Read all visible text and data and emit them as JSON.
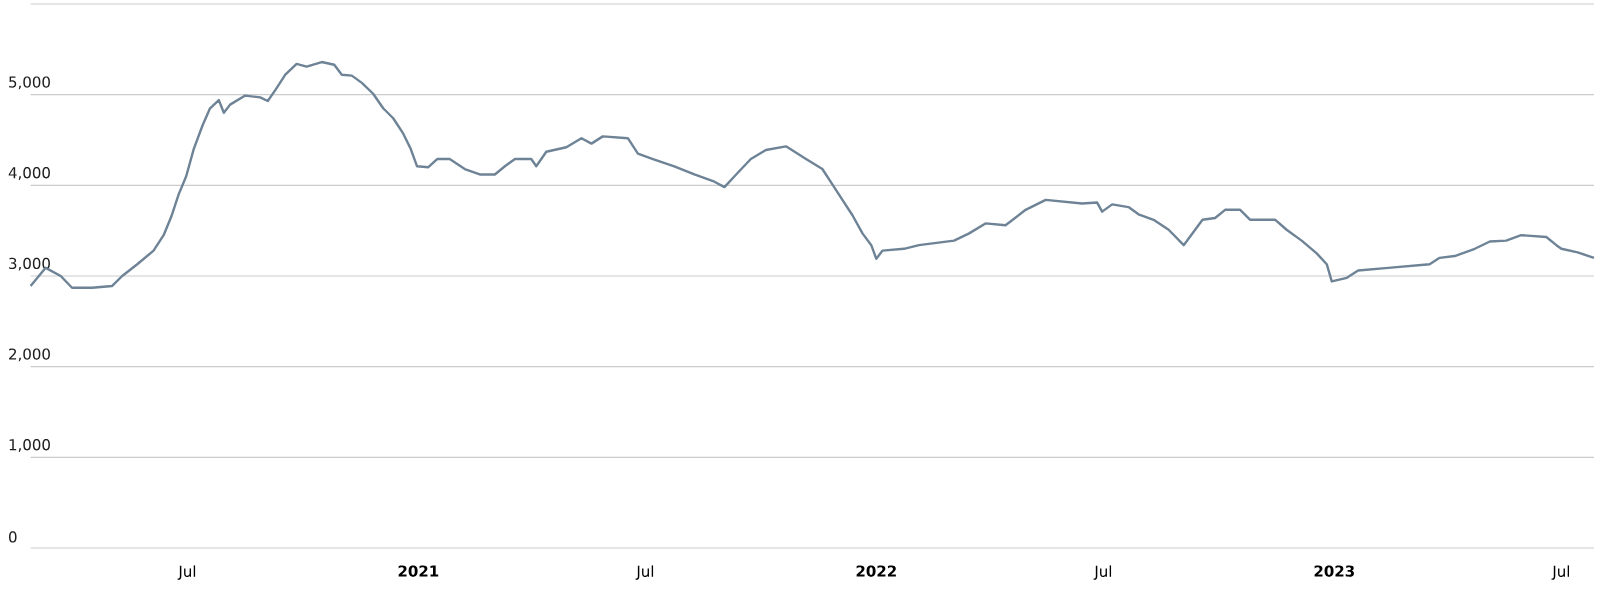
{
  "chart_data": {
    "type": "line",
    "x": [
      "2020-02-27",
      "2020-03-10",
      "2020-03-22",
      "2020-03-31",
      "2020-04-16",
      "2020-05-02",
      "2020-05-10",
      "2020-05-22",
      "2020-06-04",
      "2020-06-12",
      "2020-06-18",
      "2020-06-24",
      "2020-06-30",
      "2020-07-06",
      "2020-07-13",
      "2020-07-19",
      "2020-07-26",
      "2020-07-30",
      "2020-08-04",
      "2020-08-16",
      "2020-08-28",
      "2020-09-03",
      "2020-09-09",
      "2020-09-17",
      "2020-09-26",
      "2020-10-04",
      "2020-10-16",
      "2020-10-26",
      "2020-11-01",
      "2020-11-09",
      "2020-11-17",
      "2020-11-26",
      "2020-12-04",
      "2020-12-12",
      "2020-12-20",
      "2020-12-26",
      "2020-12-31",
      "2021-01-09",
      "2021-01-16",
      "2021-01-26",
      "2021-02-07",
      "2021-02-19",
      "2021-03-03",
      "2021-03-11",
      "2021-03-19",
      "2021-04-01",
      "2021-04-05",
      "2021-04-13",
      "2021-04-29",
      "2021-05-11",
      "2021-05-19",
      "2021-05-28",
      "2021-06-17",
      "2021-06-25",
      "2021-07-07",
      "2021-07-24",
      "2021-08-09",
      "2021-08-25",
      "2021-09-02",
      "2021-09-10",
      "2021-09-23",
      "2021-10-05",
      "2021-10-21",
      "2021-11-06",
      "2021-11-19",
      "2021-11-27",
      "2021-12-05",
      "2021-12-13",
      "2021-12-21",
      "2021-12-28",
      "2022-01-01",
      "2022-01-06",
      "2022-01-23",
      "2022-02-04",
      "2022-03-04",
      "2022-03-16",
      "2022-03-29",
      "2022-04-14",
      "2022-04-30",
      "2022-05-16",
      "2022-06-14",
      "2022-06-26",
      "2022-06-30",
      "2022-07-08",
      "2022-07-21",
      "2022-07-29",
      "2022-08-10",
      "2022-08-22",
      "2022-09-03",
      "2022-09-18",
      "2022-09-28",
      "2022-10-06",
      "2022-10-18",
      "2022-10-26",
      "2022-11-15",
      "2022-11-24",
      "2022-12-06",
      "2022-12-18",
      "2022-12-26",
      "2022-12-30",
      "2023-01-11",
      "2023-01-20",
      "2023-02-13",
      "2023-03-18",
      "2023-03-26",
      "2023-04-07",
      "2023-04-23",
      "2023-05-05",
      "2023-05-18",
      "2023-05-30",
      "2023-06-19",
      "2023-06-27",
      "2023-07-01",
      "2023-07-14",
      "2023-07-27"
    ],
    "series": [
      {
        "color": "#6e8396",
        "values": [
          2890,
          3090,
          3000,
          2870,
          2870,
          2890,
          3000,
          3130,
          3280,
          3450,
          3650,
          3900,
          4100,
          4400,
          4660,
          4850,
          4940,
          4800,
          4890,
          4990,
          4970,
          4930,
          5050,
          5220,
          5340,
          5310,
          5360,
          5330,
          5220,
          5210,
          5130,
          5010,
          4850,
          4740,
          4570,
          4400,
          4210,
          4200,
          4290,
          4290,
          4180,
          4120,
          4120,
          4210,
          4290,
          4290,
          4210,
          4370,
          4420,
          4520,
          4460,
          4540,
          4520,
          4350,
          4290,
          4210,
          4120,
          4040,
          3980,
          4100,
          4290,
          4390,
          4430,
          4290,
          4180,
          4010,
          3840,
          3670,
          3470,
          3340,
          3190,
          3280,
          3300,
          3340,
          3390,
          3470,
          3580,
          3560,
          3730,
          3840,
          3800,
          3810,
          3710,
          3790,
          3760,
          3680,
          3620,
          3510,
          3340,
          3620,
          3640,
          3730,
          3730,
          3620,
          3620,
          3510,
          3390,
          3250,
          3130,
          2940,
          2980,
          3060,
          3090,
          3130,
          3200,
          3220,
          3300,
          3380,
          3390,
          3450,
          3430,
          3340,
          3300,
          3260,
          3200
        ]
      }
    ],
    "xlim": [
      "2020-02-27",
      "2023-07-27"
    ],
    "xticks": [
      {
        "value": "2020-07-01",
        "label": "Jul"
      },
      {
        "value": "2021-01-01",
        "label": "2021"
      },
      {
        "value": "2021-07-01",
        "label": "Jul"
      },
      {
        "value": "2022-01-01",
        "label": "2022"
      },
      {
        "value": "2022-07-01",
        "label": "Jul"
      },
      {
        "value": "2023-01-01",
        "label": "2023"
      },
      {
        "value": "2023-07-01",
        "label": "Jul"
      }
    ],
    "ylim": [
      0,
      6000
    ],
    "yticks": [
      0,
      {
        "value": 1000,
        "label": "1,000"
      },
      {
        "value": 2000,
        "label": "2,000"
      },
      {
        "value": 3000,
        "label": "3,000"
      },
      {
        "value": 4000,
        "label": "4,000"
      },
      {
        "value": 5000,
        "label": "5,000"
      },
      {
        "value": 6000,
        "label": null
      }
    ],
    "grid": "y"
  }
}
